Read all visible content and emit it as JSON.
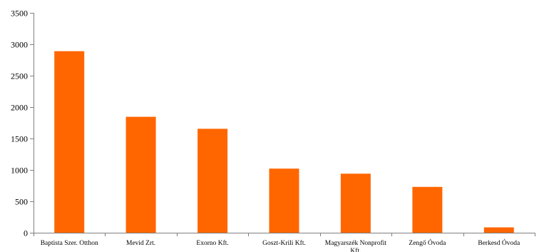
{
  "chart_data": {
    "type": "bar",
    "categories": [
      "Baptista Szer. Otthon",
      "Mevid Zrt.",
      "Exorno Kft.",
      "Goszt-Krili Kft.",
      "Magyarszék Nonprofit Kft.",
      "Zengő Óvoda",
      "Berkesd Óvoda"
    ],
    "category_lines": [
      [
        "Baptista Szer. Otthon"
      ],
      [
        "Mevid Zrt."
      ],
      [
        "Exorno Kft."
      ],
      [
        "Goszt-Krili Kft."
      ],
      [
        "Magyarszék Nonprofit",
        "Kft."
      ],
      [
        "Zengő Óvoda"
      ],
      [
        "Berkesd Óvoda"
      ]
    ],
    "values": [
      2890,
      1845,
      1655,
      1020,
      940,
      730,
      85
    ],
    "yticks": [
      0,
      500,
      1000,
      1500,
      2000,
      2500,
      3000,
      3500
    ],
    "ylim": [
      0,
      3500
    ],
    "title": "",
    "xlabel": "",
    "ylabel": "",
    "grid": false,
    "legend": "none",
    "bar_color": "#ff6600",
    "axis_color": "#808080"
  }
}
